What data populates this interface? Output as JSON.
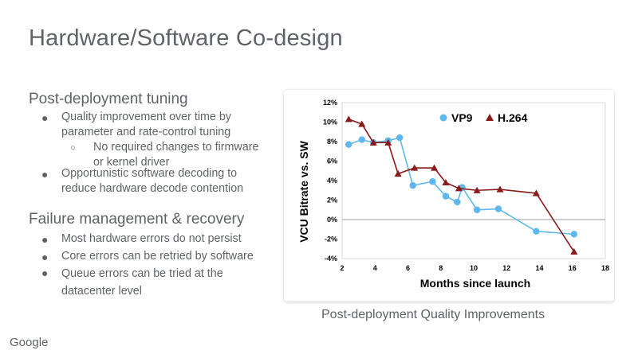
{
  "slide": {
    "title": "Hardware/Software Co-design",
    "section1": {
      "heading": "Post-deployment tuning",
      "bullet1_line1": "Quality improvement over time by",
      "bullet1_line2": "parameter and rate-control tuning",
      "sub1_line1": "No required changes to firmware",
      "sub1_line2": "or kernel driver",
      "bullet2_line1": "Opportunistic software decoding to",
      "bullet2_line2": "reduce hardware decode contention"
    },
    "section2": {
      "heading": "Failure management & recovery",
      "bullet1": "Most hardware errors do not persist",
      "bullet2": "Core errors can be retried by software",
      "bullet3_line1": "Queue errors can be tried at the",
      "bullet3_line2": "datacenter level"
    },
    "caption": "Post-deployment Quality Improvements",
    "logo": "Google"
  },
  "chart_data": {
    "type": "line",
    "xlabel": "Months since launch",
    "ylabel": "VCU Bitrate vs. SW",
    "xlim": [
      2,
      18
    ],
    "ylim": [
      -4,
      12
    ],
    "xticks": [
      2,
      4,
      6,
      8,
      10,
      12,
      14,
      16,
      18
    ],
    "yticks": [
      -4,
      -2,
      0,
      2,
      4,
      6,
      8,
      10,
      12
    ],
    "ytick_labels": [
      "-4%",
      "-2%",
      "0%",
      "2%",
      "4%",
      "6%",
      "8%",
      "10%",
      "12%"
    ],
    "series": [
      {
        "name": "VP9",
        "color": "#5eb8ef",
        "marker": "circle",
        "x": [
          2.4,
          3.2,
          3.9,
          4.8,
          5.5,
          6.3,
          7.5,
          8.3,
          9.0,
          9.3,
          10.2,
          11.5,
          13.8,
          16.1
        ],
        "y": [
          7.7,
          8.2,
          7.9,
          8.1,
          8.4,
          3.5,
          3.9,
          2.4,
          1.8,
          3.3,
          1.0,
          1.1,
          -1.2,
          -1.5
        ]
      },
      {
        "name": "H.264",
        "color": "#8b1a1a",
        "marker": "triangle",
        "x": [
          2.4,
          3.2,
          3.9,
          4.8,
          5.4,
          6.4,
          7.6,
          8.3,
          9.1,
          10.2,
          11.6,
          13.8,
          16.1
        ],
        "y": [
          10.3,
          9.8,
          7.9,
          7.9,
          4.7,
          5.3,
          5.3,
          3.8,
          3.2,
          3.0,
          3.1,
          2.7,
          -3.3
        ]
      }
    ],
    "legend_position": "top-center",
    "zero_line": true
  }
}
